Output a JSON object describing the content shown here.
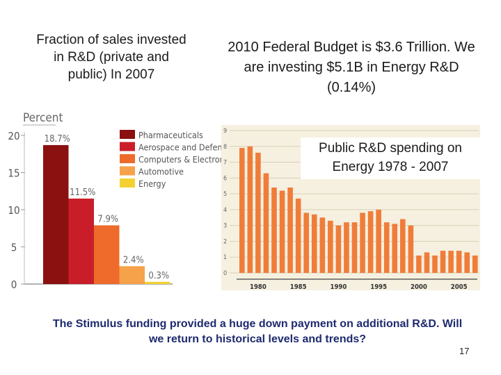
{
  "left_title": "Fraction of sales invested in R&D (private and public) In 2007",
  "right_title": "2010 Federal Budget is $3.6 Trillion. We are investing $5.1B in Energy R&D (0.14%)",
  "inset_title": "Public R&D spending on Energy 1978 - 2007",
  "footer": "The Stimulus funding provided a huge down payment on additional R&D. Will we return to historical levels and trends?",
  "page_number": "17",
  "chart_data": [
    {
      "type": "bar",
      "title": "",
      "ylabel": "Percent",
      "ylim": [
        0,
        20
      ],
      "yticks": [
        "0",
        "5",
        "10",
        "15",
        "20"
      ],
      "categories": [
        "Pharmaceuticals",
        "Aerospace and Defense",
        "Computers & Electronics",
        "Automotive",
        "Energy"
      ],
      "values": [
        18.7,
        11.5,
        7.9,
        2.4,
        0.3
      ],
      "value_labels": [
        "18.7%",
        "11.5%",
        "7.9%",
        "2.4%",
        "0.3%"
      ],
      "colors": [
        "#8b1010",
        "#c91e2a",
        "#ee6b2b",
        "#f6a24a",
        "#f2d232"
      ],
      "legend": "top-right"
    },
    {
      "type": "bar",
      "title": "Public R&D spending on Energy 1978 - 2007",
      "ylim": [
        0,
        9
      ],
      "yticks": [
        "0",
        "1",
        "2",
        "3",
        "4",
        "5",
        "6",
        "7",
        "8",
        "9"
      ],
      "xticks": [
        "1980",
        "1985",
        "1990",
        "1995",
        "2000",
        "2005"
      ],
      "x": [
        1978,
        1979,
        1980,
        1981,
        1982,
        1983,
        1984,
        1985,
        1986,
        1987,
        1988,
        1989,
        1990,
        1991,
        1992,
        1993,
        1994,
        1995,
        1996,
        1997,
        1998,
        1999,
        2000,
        2001,
        2002,
        2003,
        2004,
        2005,
        2006,
        2007
      ],
      "values": [
        7.9,
        8.0,
        7.6,
        6.3,
        5.4,
        5.2,
        5.4,
        4.7,
        3.8,
        3.7,
        3.5,
        3.3,
        3.0,
        3.2,
        3.2,
        3.8,
        3.9,
        4.0,
        3.2,
        3.1,
        3.4,
        3.0,
        1.1,
        1.3,
        1.1,
        1.4,
        1.4,
        1.4,
        1.3,
        1.1
      ],
      "color": "#ef7d3a",
      "grid": true
    }
  ]
}
